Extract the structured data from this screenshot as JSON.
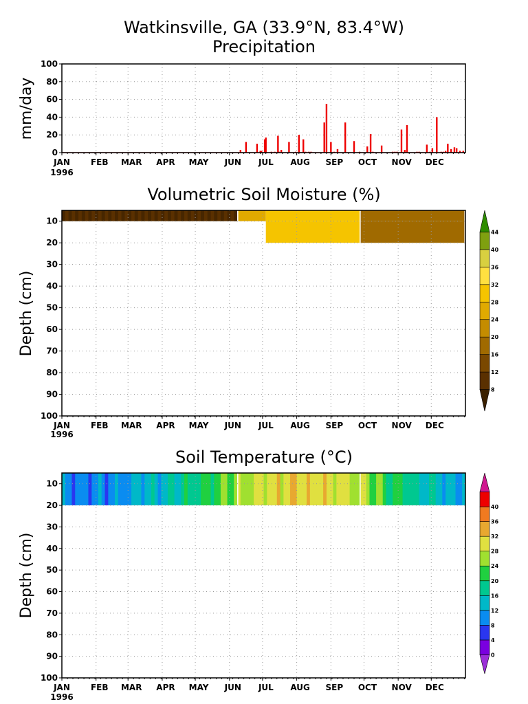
{
  "figure": {
    "title_line1": "Watkinsville, GA  (33.9°N, 83.4°W)",
    "year_label": "1996"
  },
  "chart_data": [
    {
      "type": "bar",
      "title": "Precipitation",
      "ylabel": "mm/day",
      "ylim": [
        0,
        100
      ],
      "yticks": [
        0,
        20,
        40,
        60,
        80,
        100
      ],
      "x_month_labels": [
        "JAN",
        "FEB",
        "MAR",
        "APR",
        "MAY",
        "JUN",
        "JUL",
        "AUG",
        "SEP",
        "OCT",
        "NOV",
        "DEC"
      ],
      "grid": true,
      "bar_color": "#ee0000",
      "series": [
        {
          "day_of_year": [
            163,
            168,
            178,
            181,
            182,
            185,
            186,
            191,
            194,
            197,
            198,
            200,
            207,
            213,
            216,
            220,
            222,
            225,
            227,
            239,
            241,
            245,
            248,
            251,
            258,
            266,
            271,
            278,
            281,
            283,
            291,
            301,
            303,
            305,
            309,
            312,
            314,
            323,
            325,
            332,
            335,
            337,
            341,
            345,
            347,
            349,
            351,
            354,
            357,
            359,
            362,
            365
          ],
          "values": [
            3,
            12,
            10,
            2,
            2,
            15,
            17,
            1,
            1,
            19,
            1,
            3,
            12,
            1,
            20,
            15,
            1,
            1,
            1,
            34,
            55,
            12,
            1,
            4,
            34,
            13,
            1,
            7,
            21,
            1,
            8,
            1,
            1,
            1,
            26,
            3,
            31,
            1,
            1,
            9,
            1,
            5,
            40,
            1,
            1,
            2,
            10,
            4,
            6,
            5,
            2,
            2
          ]
        }
      ]
    },
    {
      "type": "heatmap",
      "title": "Volumetric Soil Moisture (%)",
      "ylabel": "Depth (cm)",
      "ylim": [
        100,
        5
      ],
      "yticks": [
        10,
        20,
        30,
        40,
        50,
        60,
        70,
        80,
        90,
        100
      ],
      "x_month_labels": [
        "JAN",
        "FEB",
        "MAR",
        "APR",
        "MAY",
        "JUN",
        "JUL",
        "AUG",
        "SEP",
        "OCT",
        "NOV",
        "DEC"
      ],
      "colorbar_ticks": [
        8,
        12,
        16,
        20,
        24,
        28,
        32,
        36,
        40,
        44
      ],
      "colors": [
        "#3a2000",
        "#5a3000",
        "#7a4800",
        "#a06a00",
        "#c48c00",
        "#e0aa00",
        "#f5c400",
        "#ffe040",
        "#d8d040",
        "#7fa010",
        "#2e8c00"
      ],
      "depth_layers": [
        "5-10 cm",
        "10-20 cm"
      ],
      "layer_segments": [
        {
          "depth": "5-10 cm",
          "day_ranges": [
            [
              1,
              160,
              10
            ],
            [
              160,
              185,
              26
            ],
            [
              186,
              270,
              28
            ],
            [
              271,
              365,
              18
            ]
          ]
        },
        {
          "depth": "10-20 cm",
          "day_ranges": [
            [
              186,
              270,
              28
            ],
            [
              271,
              365,
              16
            ]
          ]
        }
      ],
      "grid": true
    },
    {
      "type": "heatmap",
      "title": "Soil Temperature (°C)",
      "ylabel": "Depth (cm)",
      "ylim": [
        100,
        5
      ],
      "yticks": [
        10,
        20,
        30,
        40,
        50,
        60,
        70,
        80,
        90,
        100
      ],
      "x_month_labels": [
        "JAN",
        "FEB",
        "MAR",
        "APR",
        "MAY",
        "JUN",
        "JUL",
        "AUG",
        "SEP",
        "OCT",
        "NOV",
        "DEC"
      ],
      "colorbar_ticks": [
        0,
        4,
        8,
        12,
        16,
        20,
        24,
        28,
        32,
        36,
        40
      ],
      "colors": [
        "#9b30d8",
        "#7a00e0",
        "#2a36f0",
        "#0a8cf0",
        "#00b8c8",
        "#00c890",
        "#20d040",
        "#a0e030",
        "#e0e040",
        "#e8a830",
        "#f07a20",
        "#ee0000",
        "#d01890"
      ],
      "monthly_mean_temp": [
        6,
        6,
        9,
        13,
        18,
        23,
        27,
        27,
        25,
        19,
        13,
        9
      ],
      "grid": true
    }
  ]
}
